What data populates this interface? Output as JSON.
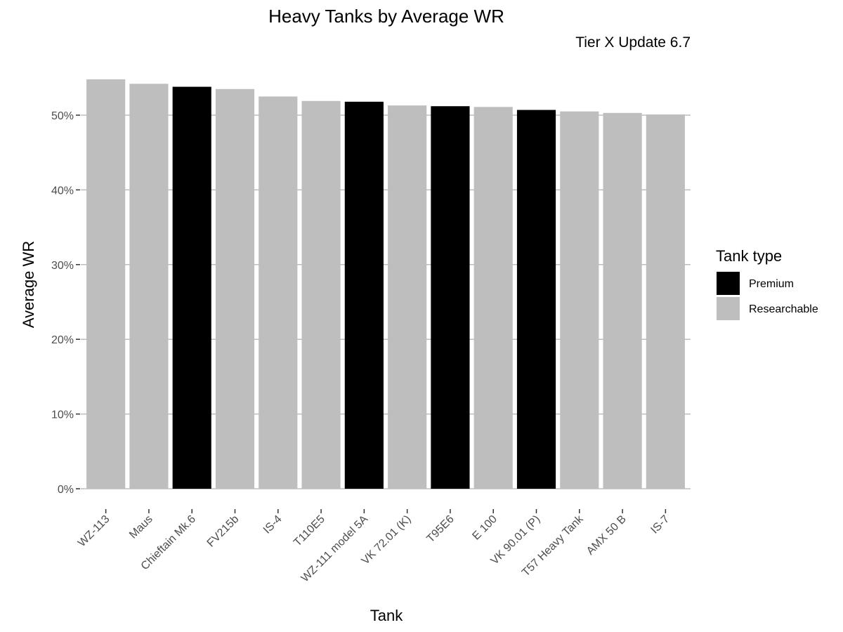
{
  "chart_data": {
    "type": "bar",
    "title": "Heavy Tanks by Average WR",
    "subtitle": "Tier X Update 6.7",
    "xlabel": "Tank",
    "ylabel": "Average WR",
    "ylim": [
      0,
      0.55
    ],
    "y_ticks": [
      0,
      0.1,
      0.2,
      0.3,
      0.4,
      0.5
    ],
    "y_tick_labels": [
      "0%",
      "10%",
      "20%",
      "30%",
      "40%",
      "50%"
    ],
    "grid": "horizontal major",
    "legend_position": "right",
    "legend_title": "Tank type",
    "legend": [
      {
        "name": "Premium",
        "color": "#000000"
      },
      {
        "name": "Researchable",
        "color": "#bebebe"
      }
    ],
    "categories": [
      "WZ-113",
      "Maus",
      "Chieftain Mk.6",
      "FV215b",
      "IS-4",
      "T110E5",
      "WZ-111 model 5A",
      "VK 72.01 (K)",
      "T95E6",
      "E 100",
      "VK 90.01 (P)",
      "T57 Heavy Tank",
      "AMX 50 B",
      "IS-7"
    ],
    "values": [
      0.548,
      0.542,
      0.538,
      0.535,
      0.525,
      0.519,
      0.518,
      0.513,
      0.512,
      0.511,
      0.507,
      0.505,
      0.503,
      0.501
    ],
    "types": [
      "Researchable",
      "Researchable",
      "Premium",
      "Researchable",
      "Researchable",
      "Researchable",
      "Premium",
      "Researchable",
      "Premium",
      "Researchable",
      "Premium",
      "Researchable",
      "Researchable",
      "Researchable"
    ]
  }
}
